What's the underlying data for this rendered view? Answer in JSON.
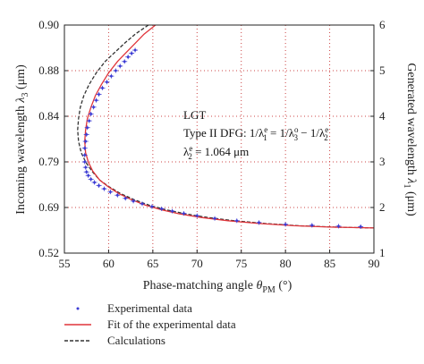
{
  "chart_data": {
    "type": "scatter",
    "xlabel": "Phase-matching angle",
    "xlabel_symbol": "θ",
    "xlabel_sub": "PM",
    "xlabel_unit": "(°)",
    "ylabel_left": "Incoming wavelength",
    "ylabel_left_symbol": "λ",
    "ylabel_left_sub": "3",
    "ylabel_left_unit": "(μm)",
    "ylabel_right": "Generated wavelength",
    "ylabel_right_symbol": "λ",
    "ylabel_right_sub": "1",
    "ylabel_right_unit": "(μm)",
    "xlim": [
      55,
      90
    ],
    "ylim_right": [
      1,
      6
    ],
    "x_ticks": [
      "55",
      "60",
      "65",
      "70",
      "75",
      "80",
      "85",
      "90"
    ],
    "y_left_ticks": [
      "0.52",
      "0.69",
      "0.79",
      "0.84",
      "0.88",
      "0.90"
    ],
    "y_right_ticks": [
      "1",
      "2",
      "3",
      "4",
      "5",
      "6"
    ],
    "grid": true,
    "legend_position": "bottom",
    "annotations": {
      "crystal": "LGT",
      "process_prefix": "Type II DFG: 1/λ",
      "process_rest": " = 1/λ",
      "process_rest2": " − 1/λ",
      "lambda2_label": "λ",
      "lambda2_value": " = 1.064 μm",
      "sup_e": "e",
      "sup_o": "o",
      "sub_1": "1",
      "sub_2": "2",
      "sub_3": "3"
    },
    "series": [
      {
        "name": "Experimental data",
        "color": "#3b3bd4",
        "x": [
          63.0,
          62.6,
          62.2,
          61.8,
          61.3,
          60.8,
          60.3,
          59.8,
          59.3,
          58.9,
          58.6,
          58.3,
          58.0,
          57.8,
          57.6,
          57.5,
          57.4,
          57.3,
          57.3,
          57.3,
          57.4,
          57.5,
          57.7,
          58.0,
          58.4,
          58.9,
          59.5,
          60.2,
          61.0,
          61.9,
          62.8,
          63.8,
          64.9,
          66.0,
          67.2,
          68.5,
          70.0,
          72.0,
          74.5,
          77.0,
          80.0,
          83.0,
          86.0,
          88.5
        ],
        "y": [
          5.45,
          5.38,
          5.3,
          5.2,
          5.1,
          5.0,
          4.88,
          4.75,
          4.62,
          4.48,
          4.35,
          4.2,
          4.05,
          3.9,
          3.75,
          3.6,
          3.45,
          3.3,
          3.15,
          3.0,
          2.88,
          2.78,
          2.7,
          2.62,
          2.55,
          2.48,
          2.41,
          2.34,
          2.27,
          2.2,
          2.14,
          2.08,
          2.02,
          1.97,
          1.92,
          1.87,
          1.82,
          1.76,
          1.71,
          1.67,
          1.63,
          1.61,
          1.59,
          1.58
        ]
      },
      {
        "name": "Fit of the experimental data",
        "color": "#e0343a",
        "x": [
          65.3,
          64.0,
          63.0,
          62.0,
          61.0,
          60.0,
          59.2,
          58.5,
          58.0,
          57.6,
          57.4,
          57.3,
          57.4,
          57.7,
          58.2,
          59.0,
          60.0,
          61.2,
          62.6,
          64.2,
          66.0,
          68.0,
          70.5,
          73.5,
          77.0,
          81.0,
          85.0,
          90.0
        ],
        "y": [
          6.0,
          5.8,
          5.6,
          5.4,
          5.2,
          4.95,
          4.7,
          4.45,
          4.2,
          3.95,
          3.7,
          3.45,
          3.2,
          3.0,
          2.8,
          2.6,
          2.45,
          2.3,
          2.17,
          2.05,
          1.95,
          1.86,
          1.78,
          1.71,
          1.65,
          1.6,
          1.57,
          1.55
        ]
      },
      {
        "name": "Calculations",
        "color": "#333333",
        "x": [
          64.5,
          63.0,
          61.8,
          60.7,
          59.6,
          58.6,
          57.8,
          57.2,
          56.8,
          56.6,
          56.5,
          56.6,
          56.9,
          57.4,
          58.1,
          59.0,
          60.1,
          61.4,
          62.9,
          64.6,
          66.5,
          68.7,
          71.2,
          74.2,
          77.7,
          81.5,
          85.5,
          90.0
        ],
        "y": [
          6.0,
          5.8,
          5.6,
          5.4,
          5.2,
          4.95,
          4.7,
          4.45,
          4.2,
          3.95,
          3.7,
          3.45,
          3.2,
          3.0,
          2.8,
          2.6,
          2.45,
          2.3,
          2.17,
          2.05,
          1.95,
          1.86,
          1.78,
          1.71,
          1.65,
          1.6,
          1.57,
          1.55
        ]
      }
    ]
  }
}
